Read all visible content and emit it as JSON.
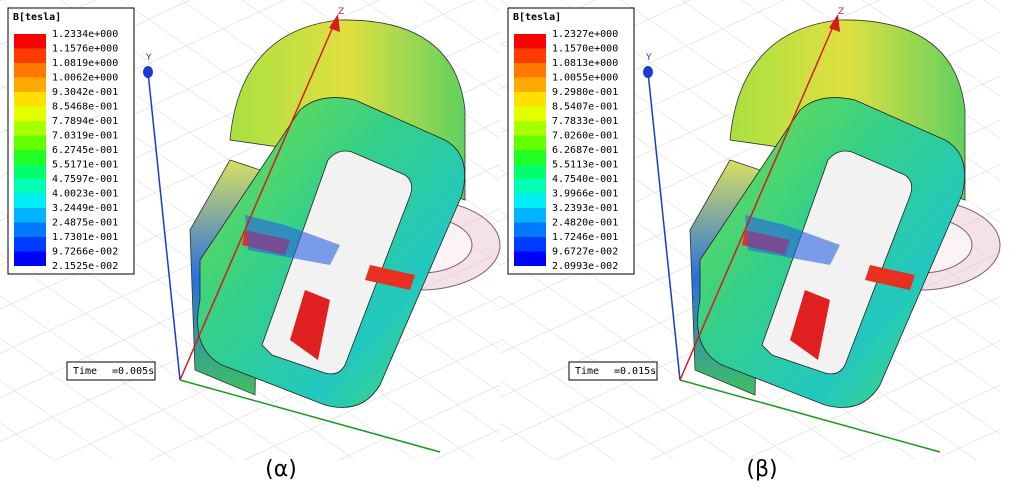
{
  "legend_colors": [
    "#ff0000",
    "#ff3c00",
    "#ff7800",
    "#ffaa00",
    "#ffe000",
    "#e4ff00",
    "#aaff00",
    "#66ff00",
    "#22ff22",
    "#00ff6a",
    "#00ffb4",
    "#00eef0",
    "#00b4ff",
    "#0078ff",
    "#003cff",
    "#0000ff"
  ],
  "panels": [
    {
      "legend": {
        "title": "B[tesla]",
        "values": [
          "1.2334e+000",
          "1.1576e+000",
          "1.0819e+000",
          "1.0062e+000",
          "9.3042e-001",
          "8.5468e-001",
          "7.7894e-001",
          "7.0319e-001",
          "6.2745e-001",
          "5.5171e-001",
          "4.7597e-001",
          "4.0023e-001",
          "3.2449e-001",
          "2.4875e-001",
          "1.7301e-001",
          "9.7266e-002",
          "2.1525e-002"
        ]
      },
      "time_label": "Time",
      "time_value": "=0.005s",
      "caption": "(α)",
      "axis_y": "Y",
      "axis_z": "Z"
    },
    {
      "legend": {
        "title": "B[tesla]",
        "values": [
          "1.2327e+000",
          "1.1570e+000",
          "1.0813e+000",
          "1.0055e+000",
          "9.2980e-001",
          "8.5407e-001",
          "7.7833e-001",
          "7.0260e-001",
          "6.2687e-001",
          "5.5113e-001",
          "4.7540e-001",
          "3.9966e-001",
          "3.2393e-001",
          "2.4820e-001",
          "1.7246e-001",
          "9.6727e-002",
          "2.0993e-002"
        ]
      },
      "time_label": "Time",
      "time_value": "=0.015s",
      "caption": "(β)",
      "axis_y": "Y",
      "axis_z": "Z"
    }
  ]
}
